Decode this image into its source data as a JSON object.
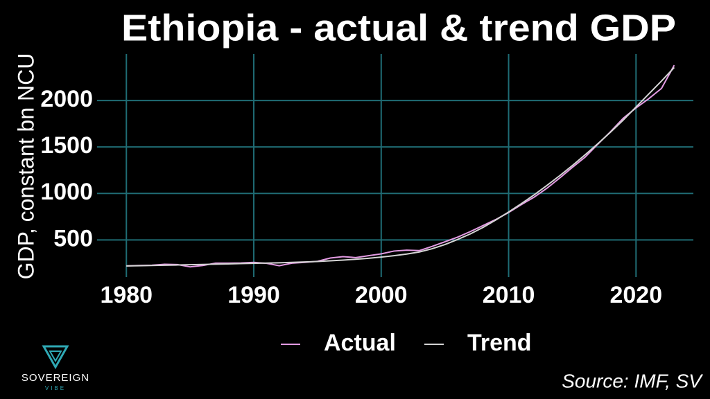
{
  "chart_data": {
    "type": "line",
    "title": "Ethiopia - actual & trend GDP",
    "y_label": "GDP, constant bn NCU",
    "source": "Source: IMF, SV",
    "x": [
      1980,
      1981,
      1982,
      1983,
      1984,
      1985,
      1986,
      1987,
      1988,
      1989,
      1990,
      1991,
      1992,
      1993,
      1994,
      1995,
      1996,
      1997,
      1998,
      1999,
      2000,
      2001,
      2002,
      2003,
      2004,
      2005,
      2006,
      2007,
      2008,
      2009,
      2010,
      2011,
      2012,
      2013,
      2014,
      2015,
      2016,
      2017,
      2018,
      2019,
      2020,
      2021,
      2022,
      2023
    ],
    "series": [
      {
        "name": "Actual",
        "color": "#e39be3",
        "values": [
          220,
          225,
          228,
          238,
          235,
          210,
          225,
          250,
          250,
          252,
          258,
          248,
          222,
          250,
          258,
          270,
          305,
          320,
          310,
          330,
          350,
          380,
          390,
          385,
          430,
          480,
          530,
          590,
          655,
          720,
          795,
          880,
          960,
          1055,
          1165,
          1280,
          1390,
          1530,
          1665,
          1810,
          1920,
          2020,
          2130,
          2380
        ]
      },
      {
        "name": "Trend",
        "color": "#d4d4d4",
        "values": [
          220,
          222,
          225,
          228,
          230,
          233,
          236,
          239,
          242,
          245,
          248,
          251,
          254,
          258,
          263,
          268,
          275,
          283,
          292,
          302,
          315,
          330,
          348,
          370,
          405,
          450,
          505,
          565,
          635,
          715,
          800,
          890,
          985,
          1085,
          1190,
          1300,
          1415,
          1535,
          1660,
          1790,
          1930,
          2070,
          2210,
          2355
        ]
      }
    ],
    "xlim": [
      1977.7,
      2024.5
    ],
    "xticks": [
      1980,
      1990,
      2000,
      2010,
      2020
    ],
    "ylim": [
      100,
      2500
    ],
    "yticks": [
      500,
      1000,
      1500,
      2000
    ],
    "grid": true,
    "grid_color": "#1f6c74",
    "legend": "bottom"
  },
  "logo": {
    "name": "SOVEREIGN",
    "tagline": "VIBE"
  }
}
